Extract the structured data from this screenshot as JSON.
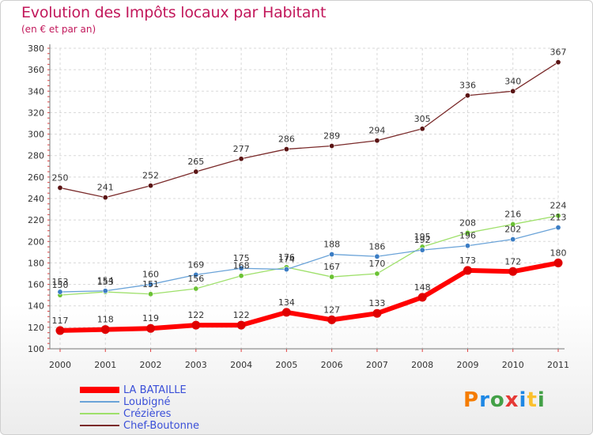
{
  "header": {
    "title": "Evolution des Impôts locaux par Habitant",
    "subtitle": "(en € et par an)"
  },
  "logo": {
    "letters": [
      "P",
      "r",
      "o",
      "x",
      "i",
      "t",
      "i"
    ],
    "colors": [
      "#f57c00",
      "#1e88e5",
      "#43a047",
      "#e53935",
      "#1e88e5",
      "#fbc02d",
      "#43a047"
    ]
  },
  "chart_data": {
    "type": "line",
    "title": "Evolution des Impôts locaux par Habitant",
    "subtitle": "(en € et par an)",
    "xlabel": "",
    "ylabel": "",
    "categories": [
      "2000",
      "2001",
      "2002",
      "2003",
      "2004",
      "2005",
      "2006",
      "2007",
      "2008",
      "2009",
      "2010",
      "2011"
    ],
    "ylim": [
      100,
      380
    ],
    "yticks": [
      100,
      120,
      140,
      160,
      180,
      200,
      220,
      240,
      260,
      280,
      300,
      320,
      340,
      360,
      380
    ],
    "grid": true,
    "legend_position": "bottom-left",
    "series": [
      {
        "name": "LA BATAILLE",
        "color": "#ff0000",
        "marker": "#e00000",
        "values": [
          117,
          118,
          119,
          122,
          122,
          134,
          127,
          133,
          148,
          173,
          172,
          180
        ]
      },
      {
        "name": "Loubigné",
        "color": "#6aa3d8",
        "marker": "#3b7dc4",
        "values": [
          153,
          154,
          160,
          169,
          175,
          174,
          188,
          186,
          192,
          196,
          202,
          213
        ]
      },
      {
        "name": "Crézières",
        "color": "#9ee06a",
        "marker": "#6bc234",
        "values": [
          150,
          153,
          151,
          156,
          168,
          176,
          167,
          170,
          195,
          208,
          216,
          224
        ]
      },
      {
        "name": "Chef-Boutonne",
        "color": "#7a2a2a",
        "marker": "#5a1414",
        "values": [
          250,
          241,
          252,
          265,
          277,
          286,
          289,
          294,
          305,
          336,
          340,
          367
        ]
      }
    ]
  }
}
